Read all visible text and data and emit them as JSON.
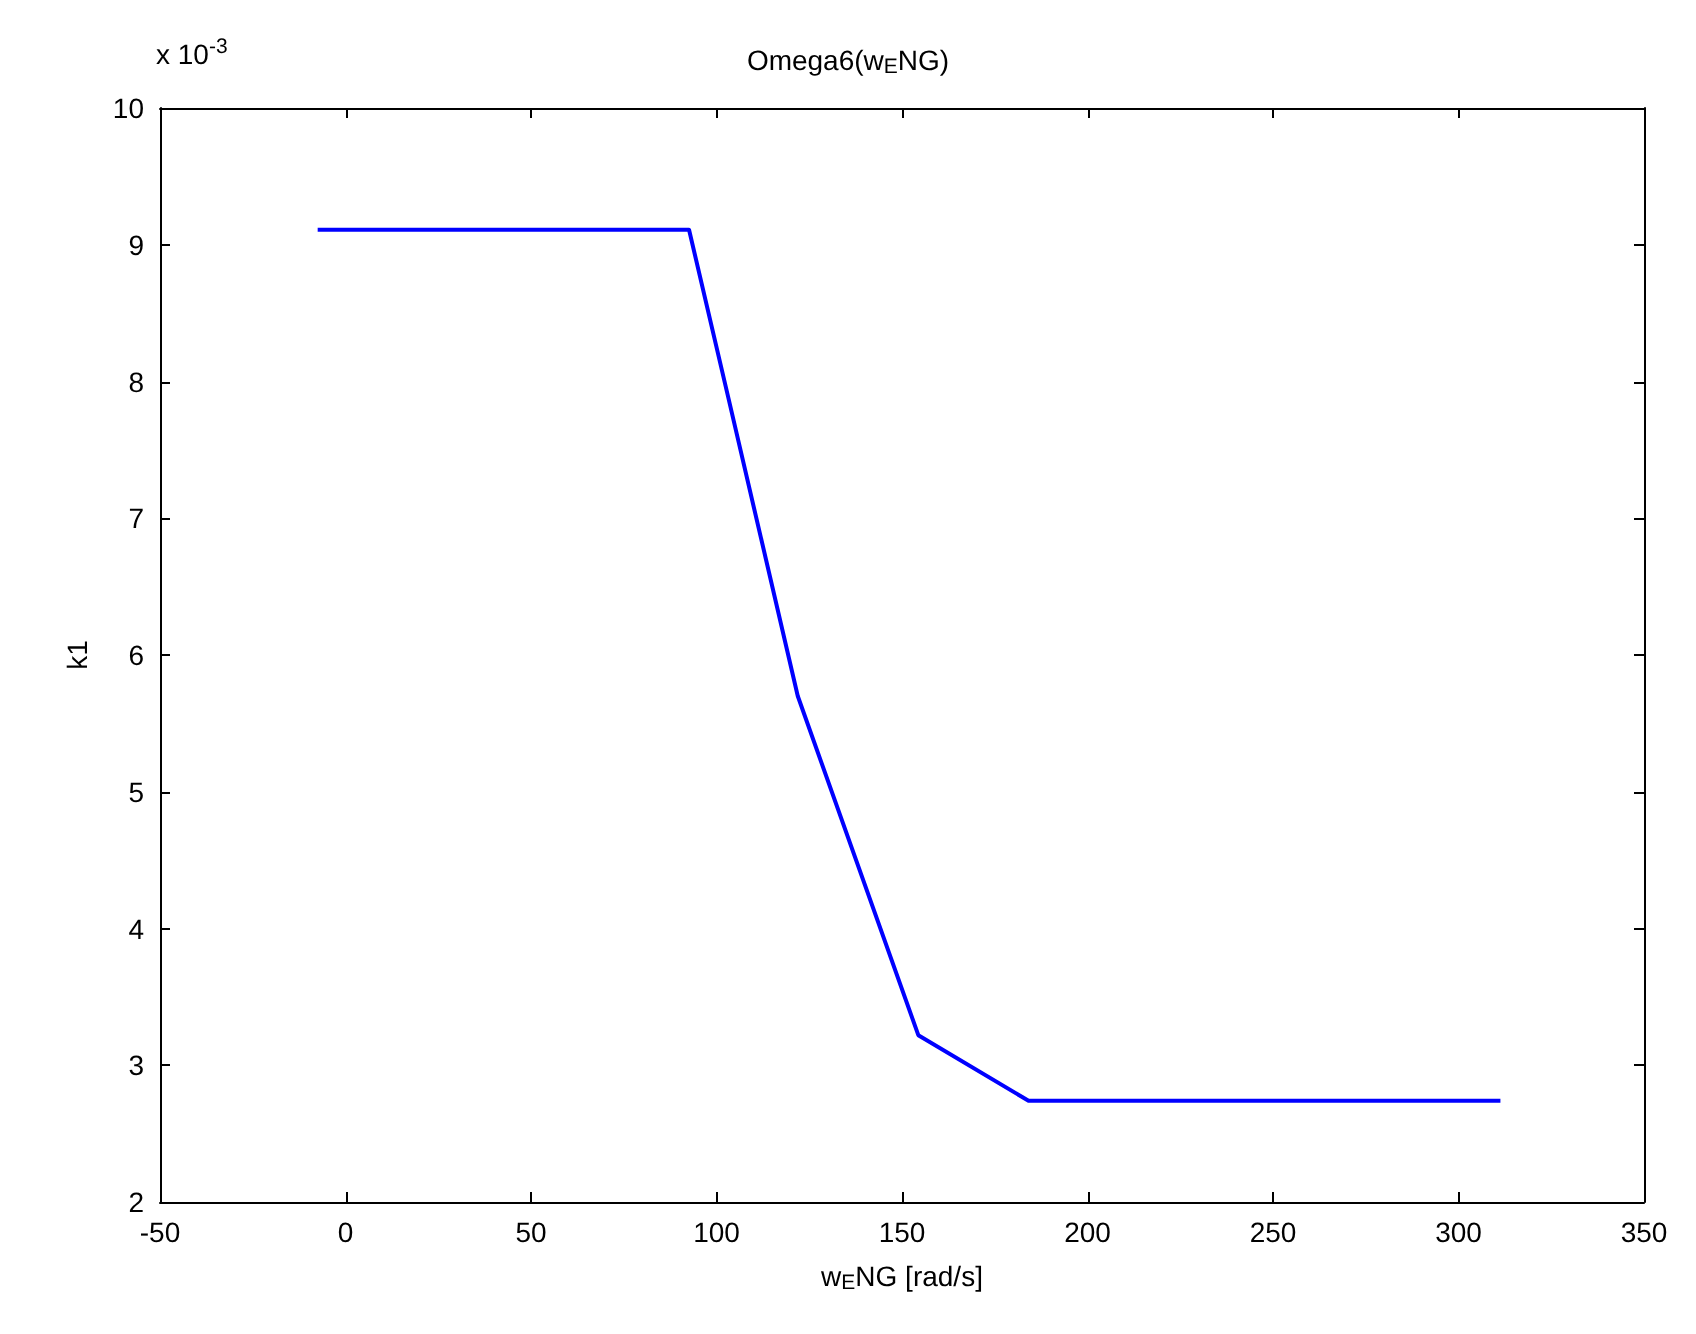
{
  "chart_data": {
    "type": "line",
    "title": "Omega6(w$_{E}$NG)",
    "xlabel": "w$_{E}$NG [rad/s]",
    "ylabel": "k1",
    "annotations": [
      "x 10$^{-3}$"
    ],
    "x": [
      -7.5,
      92.6,
      103.2,
      121.9,
      154.4,
      184.1,
      311.3
    ],
    "series": [
      {
        "color": "#0000ff",
        "values": [
          9.11,
          9.11,
          7.88,
          5.7,
          3.22,
          2.74,
          2.74
        ]
      }
    ],
    "xlim": [
      -50,
      350
    ],
    "xticks": [
      -50,
      0,
      50,
      100,
      150,
      200,
      250,
      300,
      350
    ],
    "ylim": [
      2,
      10
    ],
    "yticks": [
      2,
      3,
      4,
      5,
      6,
      7,
      8,
      9,
      10
    ],
    "grid": false,
    "marker": "none",
    "line_style": "solid"
  }
}
